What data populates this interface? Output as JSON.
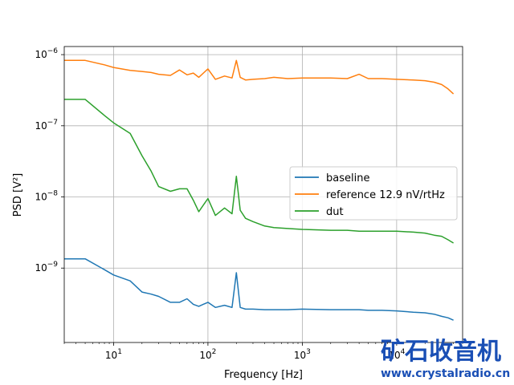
{
  "chart_data": {
    "type": "line",
    "title": "",
    "xlabel": "Frequency [Hz]",
    "ylabel": "PSD [V²]",
    "xscale": "log",
    "yscale": "log",
    "xlim": [
      3,
      50000
    ],
    "ylim": [
      9e-11,
      1.3e-06
    ],
    "grid": true,
    "legend_loc": "center-right",
    "x_ticks": [
      {
        "value": 10,
        "label": "10",
        "exp": "1"
      },
      {
        "value": 100,
        "label": "10",
        "exp": "2"
      },
      {
        "value": 1000,
        "label": "10",
        "exp": "3"
      },
      {
        "value": 10000,
        "label": "10",
        "exp": "4"
      }
    ],
    "y_ticks": [
      {
        "value": 1e-09,
        "label": "10",
        "exp": "−9"
      },
      {
        "value": 1e-08,
        "label": "10",
        "exp": "−8"
      },
      {
        "value": 1e-07,
        "label": "10",
        "exp": "−7"
      },
      {
        "value": 1e-06,
        "label": "10",
        "exp": "−6"
      }
    ],
    "x": [
      3,
      5,
      8,
      10,
      15,
      20,
      25,
      30,
      40,
      50,
      60,
      70,
      80,
      100,
      120,
      150,
      180,
      200,
      220,
      250,
      300,
      400,
      500,
      700,
      1000,
      2000,
      3000,
      4000,
      5000,
      7000,
      10000,
      15000,
      20000,
      25000,
      30000,
      35000,
      40000
    ],
    "series": [
      {
        "name": "baseline",
        "color": "#1f77b4",
        "values": [
          1.35e-09,
          1.35e-09,
          9.5e-10,
          8e-10,
          6.6e-10,
          4.6e-10,
          4.3e-10,
          4e-10,
          3.3e-10,
          3.3e-10,
          3.7e-10,
          3.1e-10,
          2.9e-10,
          3.3e-10,
          2.8e-10,
          3e-10,
          2.8e-10,
          8.6e-10,
          2.8e-10,
          2.65e-10,
          2.65e-10,
          2.6e-10,
          2.6e-10,
          2.6e-10,
          2.65e-10,
          2.6e-10,
          2.6e-10,
          2.6e-10,
          2.55e-10,
          2.55e-10,
          2.5e-10,
          2.4e-10,
          2.35e-10,
          2.25e-10,
          2.1e-10,
          2e-10,
          1.85e-10
        ]
      },
      {
        "name": "reference 12.9 nV/rtHz",
        "color": "#ff7f0e",
        "values": [
          8.3e-07,
          8.3e-07,
          7.2e-07,
          6.6e-07,
          6e-07,
          5.8e-07,
          5.6e-07,
          5.3e-07,
          5.1e-07,
          6.1e-07,
          5.2e-07,
          5.5e-07,
          4.8e-07,
          6.3e-07,
          4.5e-07,
          5e-07,
          4.7e-07,
          8.3e-07,
          4.8e-07,
          4.4e-07,
          4.5e-07,
          4.6e-07,
          4.8e-07,
          4.6e-07,
          4.7e-07,
          4.7e-07,
          4.6e-07,
          5.3e-07,
          4.6e-07,
          4.6e-07,
          4.5e-07,
          4.4e-07,
          4.3e-07,
          4.1e-07,
          3.8e-07,
          3.3e-07,
          2.8e-07
        ]
      },
      {
        "name": "dut",
        "color": "#2ca02c",
        "values": [
          2.35e-07,
          2.35e-07,
          1.4e-07,
          1.1e-07,
          7.8e-08,
          3.8e-08,
          2.3e-08,
          1.4e-08,
          1.2e-08,
          1.3e-08,
          1.3e-08,
          9e-09,
          6.2e-09,
          9.5e-09,
          5.5e-09,
          7e-09,
          5.8e-09,
          1.95e-08,
          6.5e-09,
          5e-09,
          4.5e-09,
          3.9e-09,
          3.7e-09,
          3.6e-09,
          3.5e-09,
          3.4e-09,
          3.4e-09,
          3.3e-09,
          3.3e-09,
          3.3e-09,
          3.3e-09,
          3.2e-09,
          3.1e-09,
          2.9e-09,
          2.8e-09,
          2.5e-09,
          2.25e-09
        ]
      }
    ]
  },
  "watermark": {
    "text_cn": "矿石收音机",
    "url": "www.crystalradio.cn",
    "color_cn": "#1a4fb5",
    "color_url": "#1a4fb5"
  }
}
